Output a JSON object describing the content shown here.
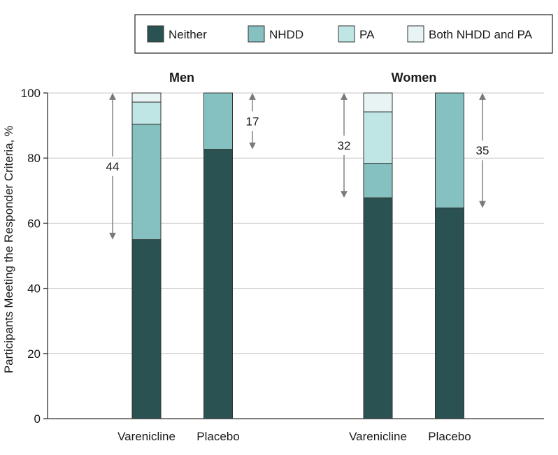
{
  "chart_data": {
    "type": "bar",
    "stacked": true,
    "ylabel": "Participants Meeting the Responder Criteria, %",
    "ylim": [
      0,
      100
    ],
    "yticks": [
      0,
      20,
      40,
      60,
      80,
      100
    ],
    "grid": true,
    "legend": {
      "placement": "top-right",
      "entries": [
        {
          "name": "Neither",
          "color": "#2b5252"
        },
        {
          "name": "NHDD",
          "color": "#86c1c1"
        },
        {
          "name": "PA",
          "color": "#bfe5e5"
        },
        {
          "name": "Both NHDD and PA",
          "color": "#e8f4f4"
        }
      ]
    },
    "panels": [
      {
        "title": "Men",
        "categories": [
          "Varenicline",
          "Placebo"
        ],
        "series": [
          {
            "name": "Neither",
            "values": [
              55,
              82.7
            ]
          },
          {
            "name": "NHDD",
            "values": [
              35.4,
              17.3
            ]
          },
          {
            "name": "PA",
            "values": [
              6.8,
              0
            ]
          },
          {
            "name": "Both NHDD and PA",
            "values": [
              2.8,
              0
            ]
          }
        ],
        "annotations": [
          {
            "category": "Varenicline",
            "label": "44",
            "from": 100,
            "to": 55
          },
          {
            "category": "Placebo",
            "label": "17",
            "from": 100,
            "to": 82.7
          }
        ]
      },
      {
        "title": "Women",
        "categories": [
          "Varenicline",
          "Placebo"
        ],
        "series": [
          {
            "name": "Neither",
            "values": [
              67.8,
              64.7
            ]
          },
          {
            "name": "NHDD",
            "values": [
              10.6,
              35.3
            ]
          },
          {
            "name": "PA",
            "values": [
              15.8,
              0
            ]
          },
          {
            "name": "Both NHDD and PA",
            "values": [
              5.8,
              0
            ]
          }
        ],
        "annotations": [
          {
            "category": "Varenicline",
            "label": "32",
            "from": 100,
            "to": 67.8
          },
          {
            "category": "Placebo",
            "label": "35",
            "from": 100,
            "to": 64.7
          }
        ]
      }
    ]
  }
}
